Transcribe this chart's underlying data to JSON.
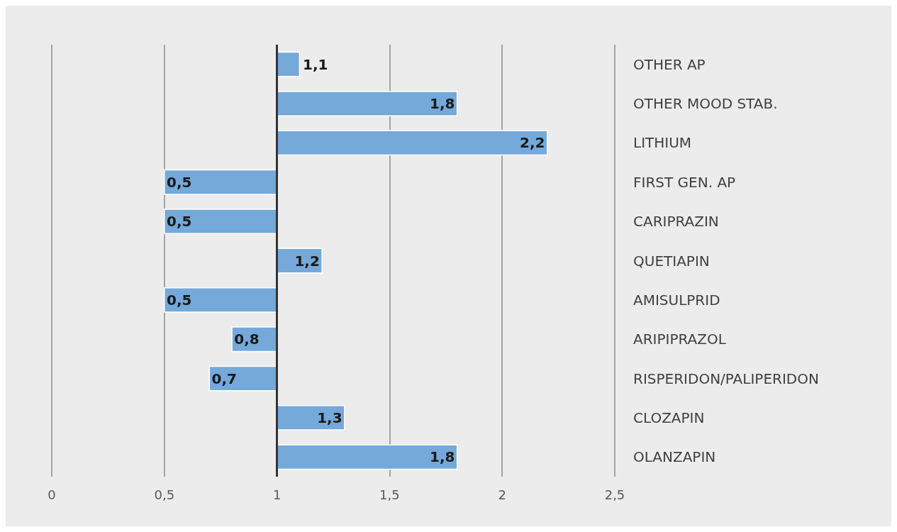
{
  "chart_data": {
    "type": "bar",
    "orientation": "horizontal",
    "categories": [
      "OTHER AP",
      "OTHER MOOD STAB.",
      "LITHIUM",
      "FIRST GEN. AP",
      "CARIPRAZIN",
      "QUETIAPIN",
      "AMISULPRID",
      "ARIPIPRAZOL",
      "RISPERIDON/PALIPERIDON",
      "CLOZAPIN",
      "OLANZAPIN"
    ],
    "base": [
      1,
      1,
      1,
      1,
      1,
      1,
      1,
      1,
      1,
      1,
      1
    ],
    "values": [
      0.1,
      0.8,
      1.2,
      -0.5,
      -0.5,
      0.2,
      -0.5,
      -0.2,
      -0.3,
      0.3,
      0.8
    ],
    "value_labels": [
      "1,1",
      "1,8",
      "2,2",
      "0,5",
      "0,5",
      "1,2",
      "0,5",
      "0,8",
      "0,7",
      "1,3",
      "1,8"
    ],
    "color": "#74a9da",
    "xlim": [
      0,
      2.5
    ],
    "xticks": [
      {
        "value": 0,
        "label": "0"
      },
      {
        "value": 0.5,
        "label": "0,5"
      },
      {
        "value": 1,
        "label": "1"
      },
      {
        "value": 1.5,
        "label": "1,5"
      },
      {
        "value": 2,
        "label": "2"
      },
      {
        "value": 2.5,
        "label": "2,5"
      }
    ],
    "ref_lines": [
      {
        "axis": "x",
        "value": 1,
        "label": null,
        "color": "#333333"
      }
    ],
    "grid": "x"
  }
}
